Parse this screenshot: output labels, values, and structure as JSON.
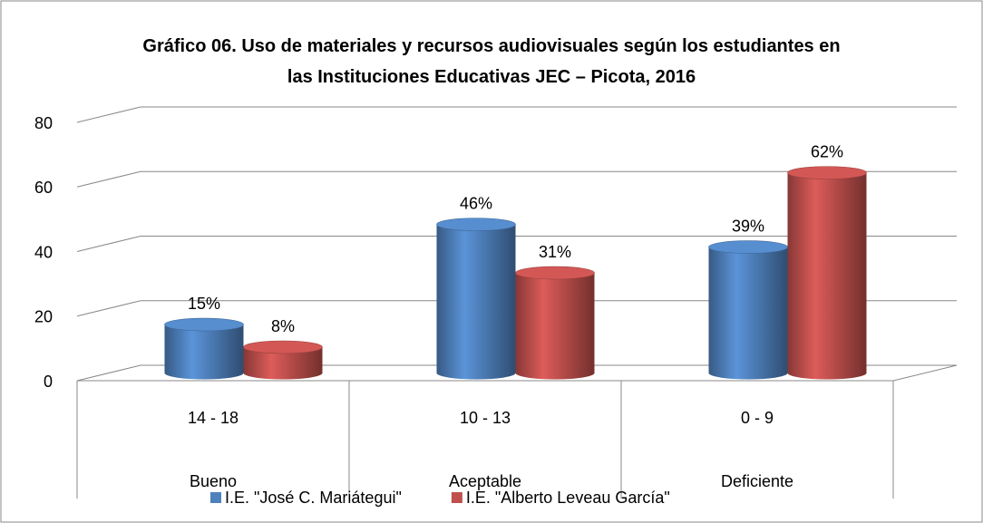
{
  "chart_data": {
    "type": "bar3d",
    "title": "Gráfico 06. Uso de materiales y recursos audiovisuales según los estudiantes en las Instituciones Educativas JEC – Picota, 2016",
    "categories": [
      "14 - 18",
      "10 - 13",
      "0 - 9"
    ],
    "category_groups": [
      "Bueno",
      "Aceptable",
      "Deficiente"
    ],
    "series": [
      {
        "name": "I.E. \"José C. Mariátegui\"",
        "color": "#4f81bd",
        "values": [
          15,
          46,
          39
        ],
        "value_labels": [
          "15%",
          "46%",
          "39%"
        ]
      },
      {
        "name": "I.E. \"Alberto Leveau García\"",
        "color": "#c0504d",
        "values": [
          8,
          31,
          62
        ],
        "value_labels": [
          "8%",
          "31%",
          "62%"
        ]
      }
    ],
    "ylim": [
      0,
      80
    ],
    "yticks": [
      0,
      20,
      40,
      60,
      80
    ],
    "grid": true,
    "legend": "bottom"
  }
}
